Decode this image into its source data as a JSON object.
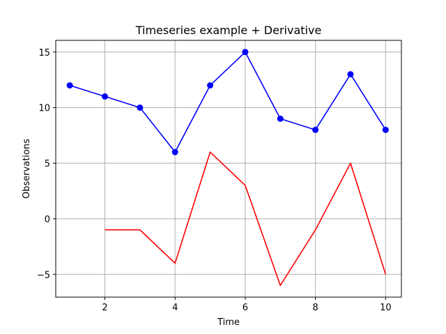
{
  "chart_data": {
    "type": "line",
    "title": "Timeseries example + Derivative",
    "xlabel": "Time",
    "ylabel": "Observations",
    "xlim": [
      0.6,
      10.45
    ],
    "ylim": [
      -7.05,
      16.05
    ],
    "xticks": [
      2,
      4,
      6,
      8,
      10
    ],
    "xtick_labels": [
      "2",
      "4",
      "6",
      "8",
      "10"
    ],
    "yticks": [
      -5,
      0,
      5,
      10,
      15
    ],
    "ytick_labels": [
      "−5",
      "0",
      "5",
      "10",
      "15"
    ],
    "grid": true,
    "legend": "none",
    "series": [
      {
        "x": [
          1,
          2,
          3,
          4,
          5,
          6,
          7,
          8,
          9,
          10
        ],
        "values": [
          12,
          11,
          10,
          6,
          12,
          15,
          9,
          8,
          13,
          8
        ],
        "color": "#0000ff",
        "marker": "circle"
      },
      {
        "x": [
          2,
          3,
          4,
          5,
          6,
          7,
          8,
          9,
          10
        ],
        "values": [
          -1,
          -1,
          -4,
          6,
          3,
          -6,
          -1,
          5,
          -5
        ],
        "color": "#ff0000",
        "marker": "none"
      }
    ]
  }
}
